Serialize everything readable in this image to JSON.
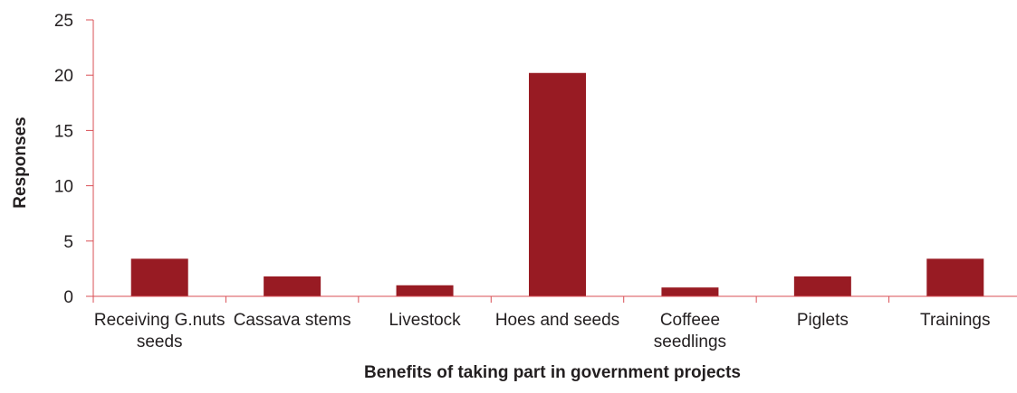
{
  "chart_data": {
    "type": "bar",
    "title": "",
    "xlabel": "Benefits of taking part in government projects",
    "ylabel": "Responses",
    "categories": [
      [
        "Receiving G.nuts",
        "seeds"
      ],
      [
        "Cassava stems"
      ],
      [
        "Livestock"
      ],
      [
        "Hoes and seeds"
      ],
      [
        "Coffeee",
        "seedlings"
      ],
      [
        "Piglets"
      ],
      [
        "Trainings"
      ]
    ],
    "values": [
      3.4,
      1.8,
      1.0,
      20.2,
      0.8,
      1.8,
      3.4
    ],
    "ylim": [
      0,
      25
    ],
    "yticks": [
      0,
      5,
      10,
      15,
      20,
      25
    ],
    "grid": false,
    "legend": "none",
    "colors": {
      "bar": "#981b23",
      "axis": "#d94f55",
      "text": "#231f20"
    }
  }
}
